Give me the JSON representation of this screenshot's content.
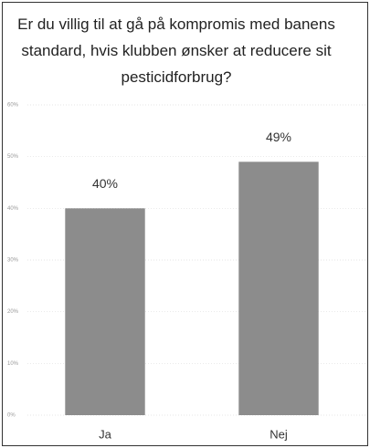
{
  "chart_data": {
    "type": "bar",
    "title": "Er du villig til at gå på kompromis med banens standard, hvis klubben ønsker at reducere sit pesticidforbrug?",
    "categories": [
      "Ja",
      "Nej"
    ],
    "values": [
      40,
      49
    ],
    "value_labels": [
      "40%",
      "49%"
    ],
    "color": "#8c8c8c",
    "ylim": [
      0,
      60
    ],
    "yticks": [
      {
        "value": 0,
        "label": "0%"
      },
      {
        "value": 10,
        "label": "10%"
      },
      {
        "value": 20,
        "label": "20%"
      },
      {
        "value": 30,
        "label": "30%"
      },
      {
        "value": 40,
        "label": "40%"
      },
      {
        "value": 50,
        "label": "50%"
      },
      {
        "value": 60,
        "label": "60%"
      }
    ],
    "grid": true
  }
}
